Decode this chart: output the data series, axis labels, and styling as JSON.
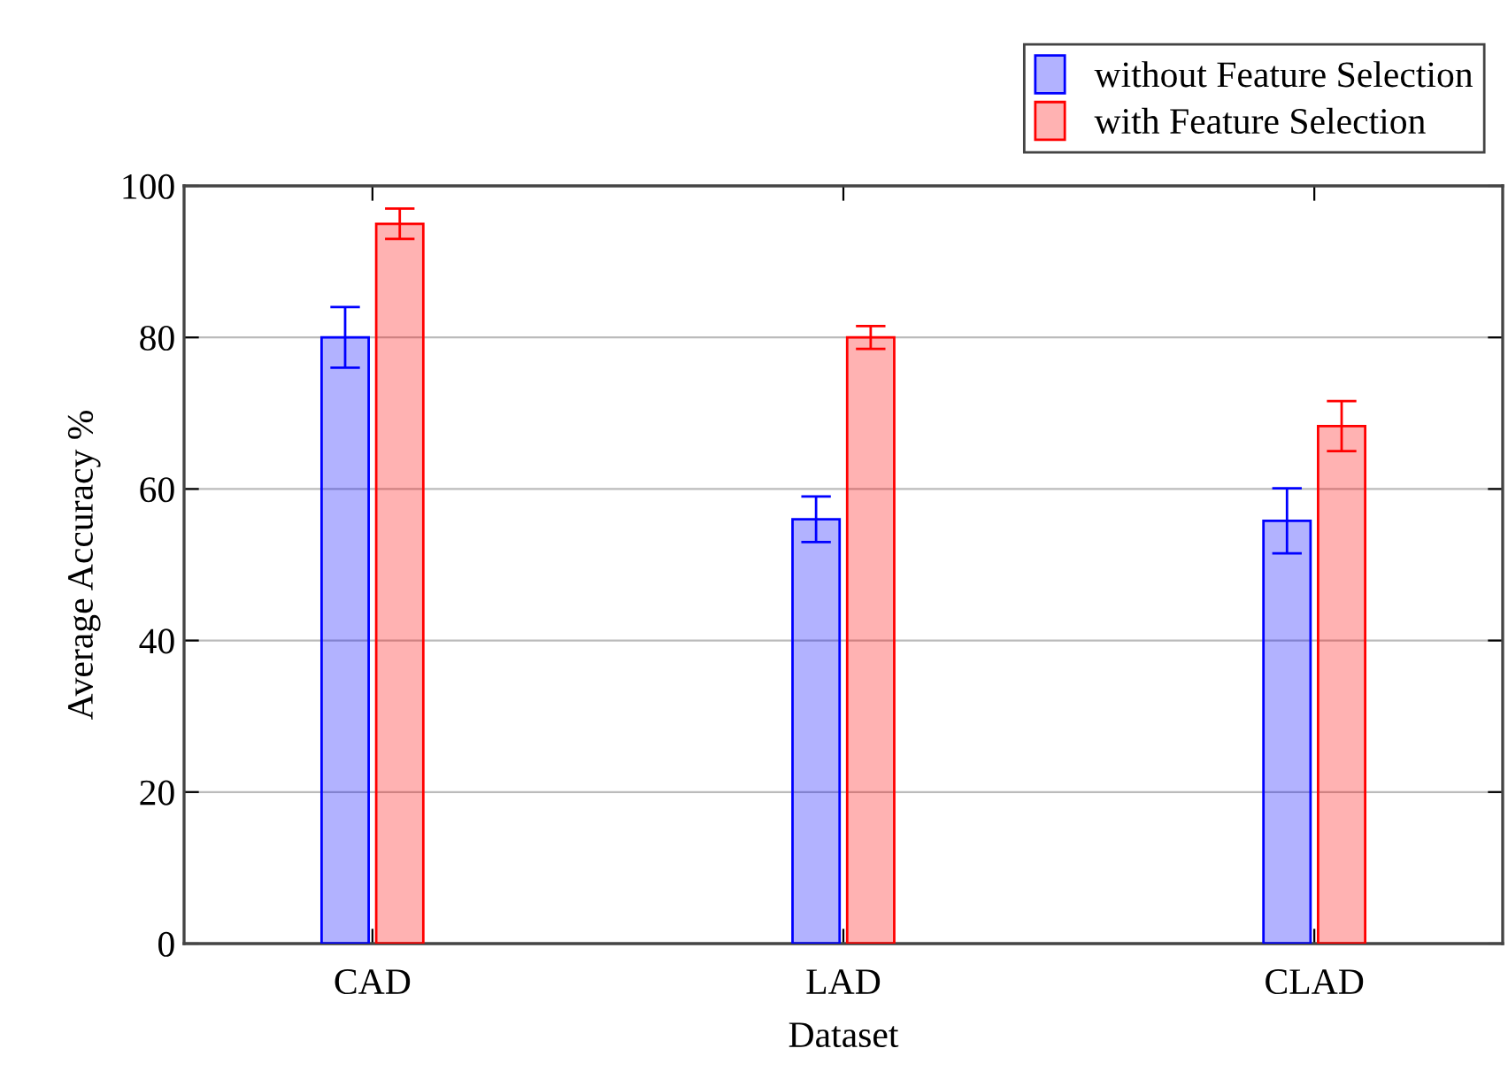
{
  "chart_data": {
    "type": "bar",
    "xlabel": "Dataset",
    "ylabel": "Average Accuracy %",
    "categories": [
      "CAD",
      "LAD",
      "CLAD"
    ],
    "series": [
      {
        "name": "without Feature Selection",
        "color": "#0000ff",
        "values": [
          80,
          56,
          55.8
        ],
        "errors": [
          4,
          3,
          4.3
        ]
      },
      {
        "name": "with Feature Selection",
        "color": "#ff0000",
        "values": [
          95,
          80,
          68.3
        ],
        "errors": [
          2,
          1.5,
          3.3
        ]
      }
    ],
    "ylim": [
      0,
      100
    ],
    "yticks": [
      0,
      20,
      40,
      60,
      80,
      100
    ],
    "grid": "y",
    "legend": "top right"
  }
}
